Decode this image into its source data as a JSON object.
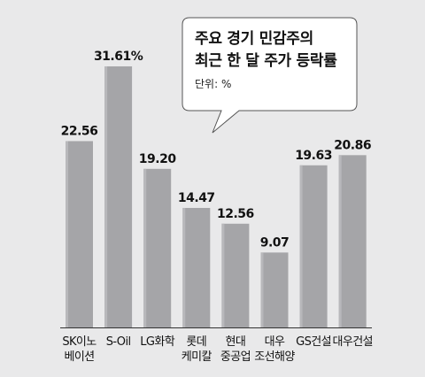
{
  "chart_data": {
    "type": "bar",
    "title_lines": [
      "주요 경기 민감주의",
      "최근 한 달 주가 등락률"
    ],
    "unit": "단위: %",
    "categories": [
      [
        "SK이노",
        "베이션"
      ],
      [
        "S-Oil"
      ],
      [
        "LG화학"
      ],
      [
        "롯데",
        "케미칼"
      ],
      [
        "현대",
        "중공업"
      ],
      [
        "대우",
        "조선해양"
      ],
      [
        "GS건설"
      ],
      [
        "대우건설"
      ]
    ],
    "values": [
      22.56,
      31.61,
      19.2,
      14.47,
      12.56,
      9.07,
      19.63,
      20.86
    ],
    "value_labels": [
      "22.56",
      "31.61%",
      "19.20",
      "14.47",
      "12.56",
      "9.07",
      "19.63",
      "20.86"
    ],
    "ylim": [
      0,
      31.61
    ],
    "grid": false,
    "colors": {
      "background": "#e9e9ea",
      "bar": "#a5a5a8",
      "bar_highlight": "#b8b8bb",
      "baseline": "#333333",
      "text": "#111111"
    }
  }
}
